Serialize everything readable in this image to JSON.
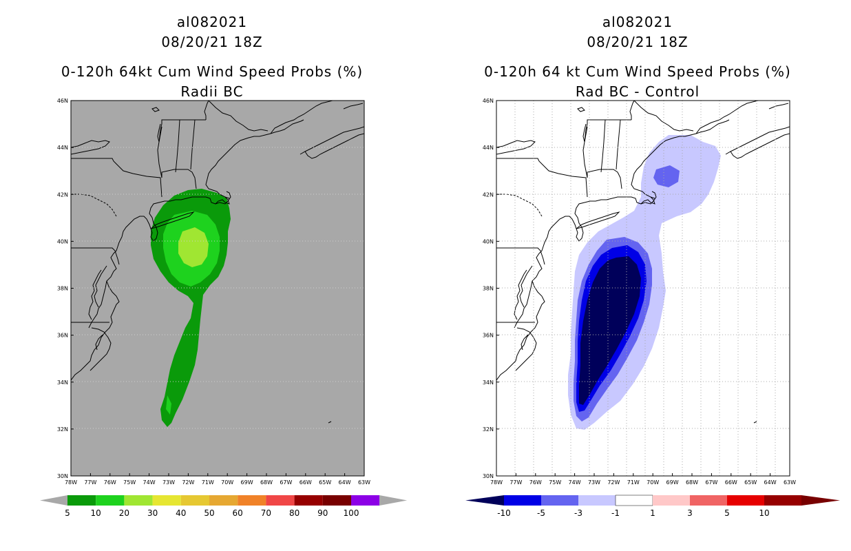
{
  "left_panel": {
    "storm_id": "al082021",
    "datetime": "08/20/21 18Z",
    "title": "0-120h 64kt Cum Wind Speed Probs (%)",
    "subtitle": "Radii BC",
    "lat_labels": [
      "46N",
      "44N",
      "42N",
      "40N",
      "38N",
      "36N",
      "34N",
      "32N",
      "30N"
    ],
    "lon_labels": [
      "78W",
      "77W",
      "76W",
      "75W",
      "74W",
      "73W",
      "72W",
      "71W",
      "70W",
      "69W",
      "68W",
      "67W",
      "66W",
      "65W",
      "64W",
      "63W"
    ],
    "background_color": "#a8a8a8",
    "legend": {
      "labels": [
        "5",
        "10",
        "20",
        "30",
        "40",
        "50",
        "60",
        "70",
        "80",
        "90",
        "100"
      ],
      "colors": [
        "#0a9a0a",
        "#1ed21e",
        "#a0e632",
        "#e6e632",
        "#e6c832",
        "#e6a832",
        "#f08228",
        "#f04646",
        "#960000",
        "#780000",
        "#8c00e6"
      ],
      "end_color": "#a8a8a8"
    }
  },
  "right_panel": {
    "storm_id": "al082021",
    "datetime": "08/20/21 18Z",
    "title": "0-120h 64 kt Cum Wind Speed Probs (%)",
    "subtitle": "Rad BC - Control",
    "lat_labels": [
      "46N",
      "44N",
      "42N",
      "40N",
      "38N",
      "36N",
      "34N",
      "32N",
      "30N"
    ],
    "lon_labels": [
      "78W",
      "77W",
      "76W",
      "75W",
      "74W",
      "73W",
      "72W",
      "71W",
      "70W",
      "69W",
      "68W",
      "67W",
      "66W",
      "65W",
      "64W",
      "63W"
    ],
    "background_color": "#ffffff",
    "legend": {
      "labels": [
        "-10",
        "-5",
        "-3",
        "-1",
        "1",
        "3",
        "5",
        "10"
      ],
      "colors": [
        "#00005a",
        "#0000e6",
        "#6464f0",
        "#c8c8ff",
        "#ffffff",
        "#ffc8c8",
        "#f06464",
        "#e60000",
        "#960000"
      ],
      "start_color": "#00005a",
      "end_color": "#780000"
    }
  }
}
